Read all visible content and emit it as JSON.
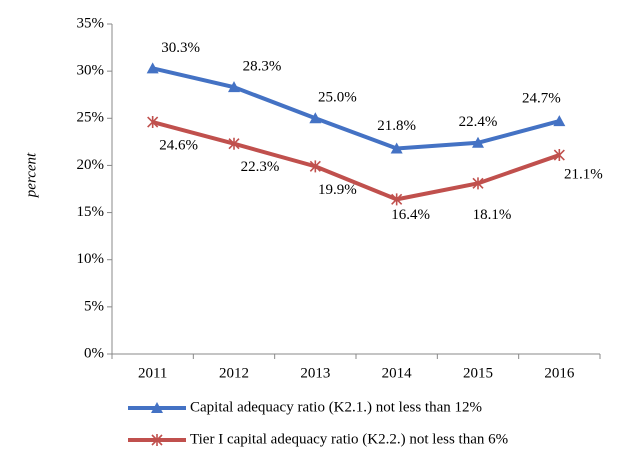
{
  "chart_data": {
    "type": "line",
    "ylabel": "percent",
    "categories": [
      "2011",
      "2012",
      "2013",
      "2014",
      "2015",
      "2016"
    ],
    "series": [
      {
        "name": "Capital adequacy ratio (K2.1.) not less than 12%",
        "color": "#4472c4",
        "marker": "triangle",
        "values": [
          30.3,
          28.3,
          25.0,
          21.8,
          22.4,
          24.7
        ],
        "value_labels": [
          "30.3%",
          "28.3%",
          "25.0%",
          "21.8%",
          "22.4%",
          "24.7%"
        ]
      },
      {
        "name": "Tier I capital adequacy ratio (K2.2.) not less than 6%",
        "color": "#c0504d",
        "marker": "star",
        "values": [
          24.6,
          22.3,
          19.9,
          16.4,
          18.1,
          21.1
        ],
        "value_labels": [
          "24.6%",
          "22.3%",
          "19.9%",
          "16.4%",
          "18.1%",
          "21.1%"
        ]
      }
    ],
    "ylim": [
      0,
      35
    ],
    "yticks": [
      {
        "value": 0,
        "label": "0%"
      },
      {
        "value": 5,
        "label": "5%"
      },
      {
        "value": 10,
        "label": "10%"
      },
      {
        "value": 15,
        "label": "15%"
      },
      {
        "value": 20,
        "label": "20%"
      },
      {
        "value": 25,
        "label": "25%"
      },
      {
        "value": 30,
        "label": "30%"
      },
      {
        "value": 35,
        "label": "35%"
      }
    ],
    "grid": false
  }
}
